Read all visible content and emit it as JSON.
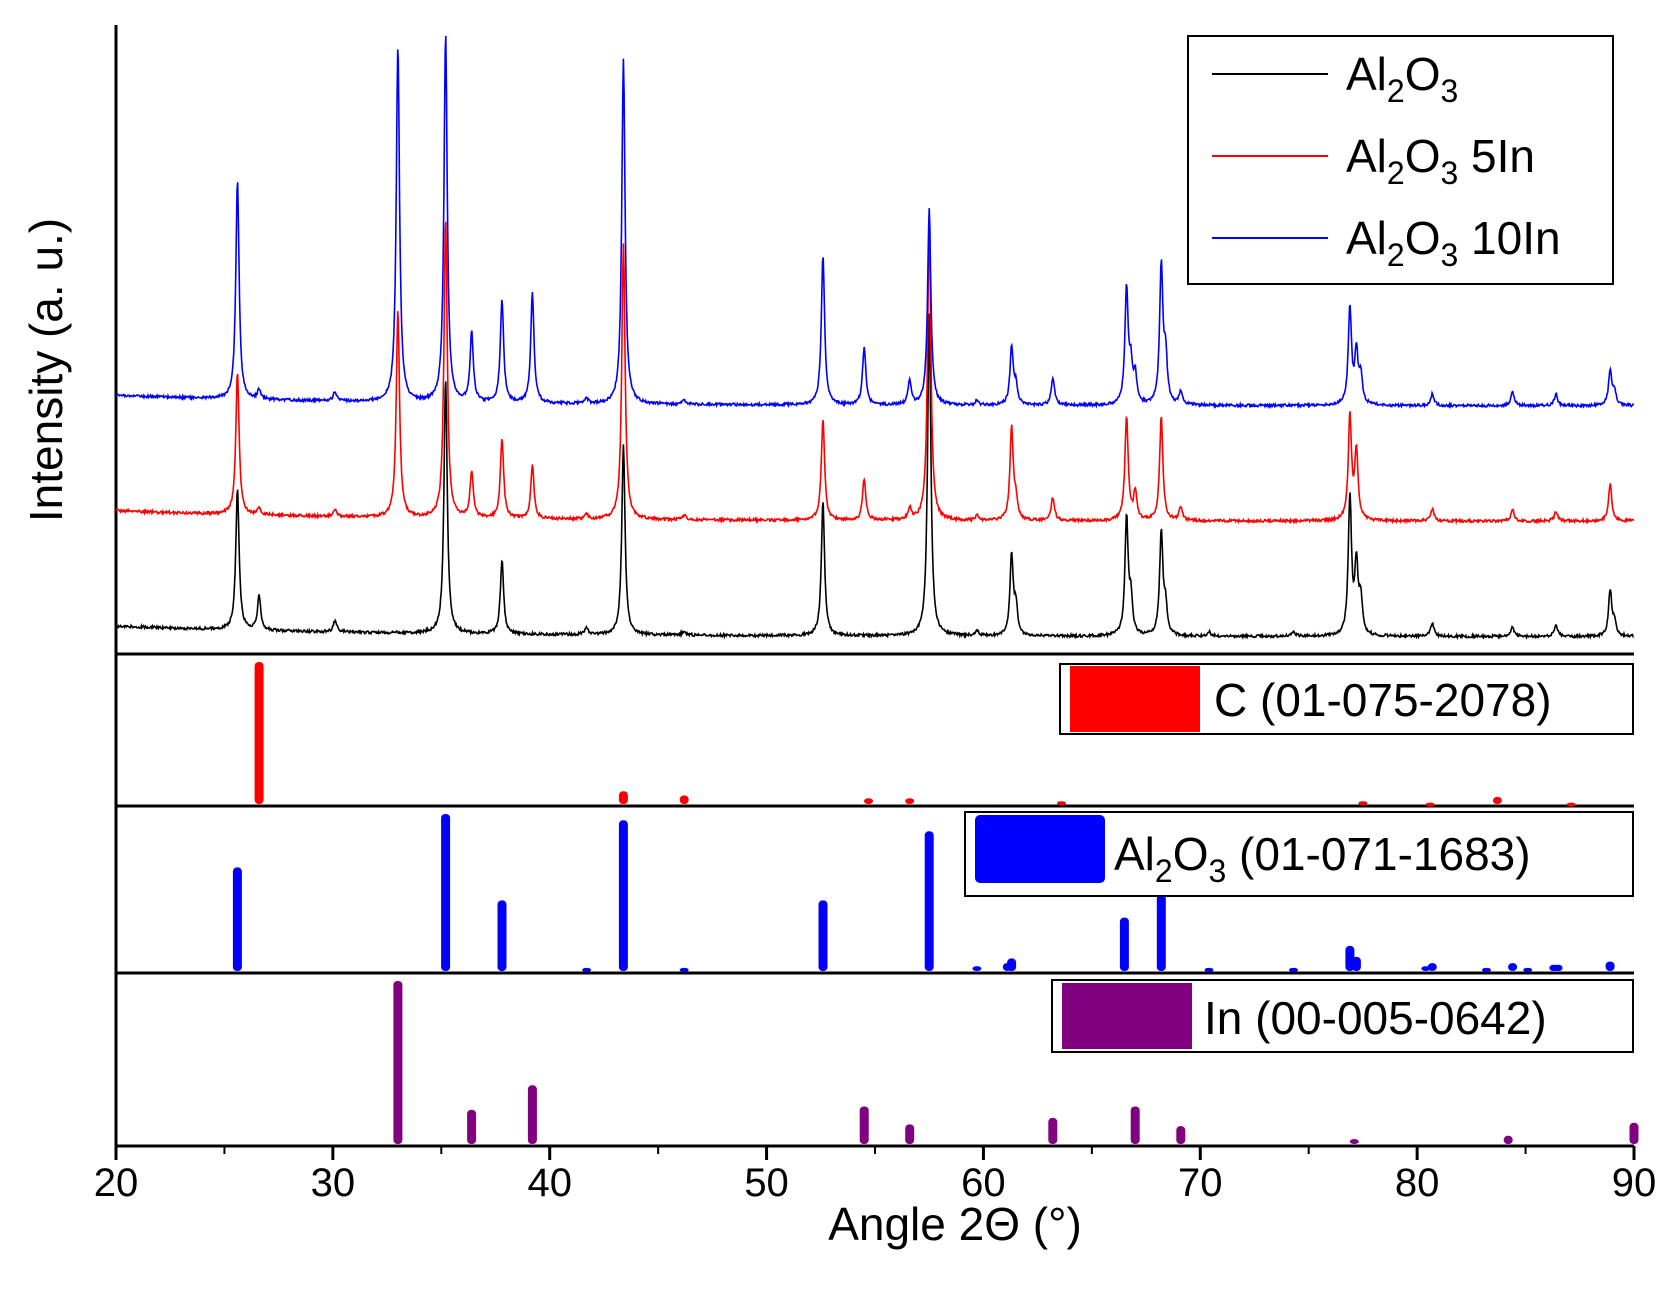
{
  "chart_data": {
    "type": "line",
    "title": "",
    "xlabel": "Angle 2Θ (°)",
    "ylabel": "Intensity (a. u.)",
    "xlim": [
      20,
      90
    ],
    "xticks": [
      20,
      30,
      40,
      50,
      60,
      70,
      80,
      90
    ],
    "legend_position": "top-right",
    "series": [
      {
        "name": "Al2O3",
        "label_main": "Al",
        "label_sub1": "2",
        "label_o": "O",
        "label_sub2": "3",
        "label_suffix": "",
        "color": "#000000",
        "baseline": 0.05,
        "peaks": [
          [
            25.6,
            0.62
          ],
          [
            26.6,
            0.15
          ],
          [
            30.1,
            0.05
          ],
          [
            35.2,
            1.1
          ],
          [
            37.8,
            0.32
          ],
          [
            41.7,
            0.03
          ],
          [
            43.4,
            0.82
          ],
          [
            46.2,
            0.02
          ],
          [
            52.6,
            0.58
          ],
          [
            57.5,
            1.4
          ],
          [
            59.7,
            0.02
          ],
          [
            61.3,
            0.35
          ],
          [
            61.5,
            0.12
          ],
          [
            66.6,
            0.51
          ],
          [
            66.8,
            0.15
          ],
          [
            68.2,
            0.45
          ],
          [
            68.4,
            0.12
          ],
          [
            70.4,
            0.02
          ],
          [
            74.3,
            0.02
          ],
          [
            76.9,
            0.6
          ],
          [
            77.2,
            0.3
          ],
          [
            77.4,
            0.15
          ],
          [
            80.7,
            0.06
          ],
          [
            84.4,
            0.04
          ],
          [
            86.4,
            0.05
          ],
          [
            88.9,
            0.2
          ],
          [
            89.1,
            0.06
          ]
        ]
      },
      {
        "name": "Al2O3 5In",
        "label_main": "Al",
        "label_sub1": "2",
        "label_o": "O",
        "label_sub2": "3",
        "label_suffix": " 5In",
        "color": "#ff0000",
        "baseline": 0.55,
        "peaks": [
          [
            25.6,
            0.62
          ],
          [
            26.6,
            0.03
          ],
          [
            30.1,
            0.03
          ],
          [
            33.0,
            0.9
          ],
          [
            35.2,
            1.3
          ],
          [
            36.4,
            0.2
          ],
          [
            37.8,
            0.35
          ],
          [
            39.2,
            0.23
          ],
          [
            41.7,
            0.02
          ],
          [
            43.4,
            1.2
          ],
          [
            46.2,
            0.02
          ],
          [
            52.6,
            0.44
          ],
          [
            54.5,
            0.18
          ],
          [
            56.6,
            0.05
          ],
          [
            57.5,
            1.3
          ],
          [
            59.7,
            0.02
          ],
          [
            61.3,
            0.4
          ],
          [
            61.5,
            0.08
          ],
          [
            63.2,
            0.1
          ],
          [
            66.6,
            0.45
          ],
          [
            67.0,
            0.12
          ],
          [
            68.2,
            0.45
          ],
          [
            69.1,
            0.06
          ],
          [
            76.9,
            0.45
          ],
          [
            77.2,
            0.3
          ],
          [
            80.7,
            0.05
          ],
          [
            84.4,
            0.05
          ],
          [
            86.4,
            0.04
          ],
          [
            88.9,
            0.16
          ]
        ]
      },
      {
        "name": "Al2O3 10In",
        "label_main": "Al",
        "label_sub1": "2",
        "label_o": "O",
        "label_sub2": "3",
        "label_suffix": " 10In",
        "color": "#0000ff",
        "baseline": 1.05,
        "peaks": [
          [
            25.6,
            0.95
          ],
          [
            26.6,
            0.04
          ],
          [
            30.1,
            0.04
          ],
          [
            33.0,
            1.55
          ],
          [
            35.2,
            1.6
          ],
          [
            36.4,
            0.3
          ],
          [
            37.8,
            0.45
          ],
          [
            39.2,
            0.48
          ],
          [
            41.7,
            0.02
          ],
          [
            43.4,
            1.5
          ],
          [
            46.2,
            0.02
          ],
          [
            52.6,
            0.65
          ],
          [
            54.5,
            0.25
          ],
          [
            56.6,
            0.1
          ],
          [
            57.5,
            0.85
          ],
          [
            59.7,
            0.02
          ],
          [
            61.3,
            0.25
          ],
          [
            61.5,
            0.08
          ],
          [
            63.2,
            0.12
          ],
          [
            66.6,
            0.5
          ],
          [
            66.8,
            0.15
          ],
          [
            67.0,
            0.12
          ],
          [
            68.2,
            0.6
          ],
          [
            68.4,
            0.2
          ],
          [
            69.1,
            0.06
          ],
          [
            76.9,
            0.42
          ],
          [
            77.2,
            0.22
          ],
          [
            77.4,
            0.12
          ],
          [
            80.7,
            0.05
          ],
          [
            84.4,
            0.06
          ],
          [
            86.4,
            0.05
          ],
          [
            88.9,
            0.15
          ],
          [
            89.1,
            0.06
          ]
        ]
      }
    ],
    "reference_panels": [
      {
        "name": "C (01-075-2078)",
        "label_main": "C (01-075-2078)",
        "label_parts": null,
        "color": "#ff0000",
        "peaks": [
          [
            26.6,
            100
          ],
          [
            43.4,
            9
          ],
          [
            46.2,
            6
          ],
          [
            54.7,
            4
          ],
          [
            56.6,
            4
          ],
          [
            63.6,
            2
          ],
          [
            77.5,
            2
          ],
          [
            80.6,
            1
          ],
          [
            83.7,
            5
          ],
          [
            87.1,
            1
          ]
        ]
      },
      {
        "name": "Al2O3 (01-071-1683)",
        "label_main": "Al",
        "label_parts": {
          "sub1": "2",
          "o": "O",
          "sub2": "3",
          "suffix": " (01-071-1683)"
        },
        "color": "#0000ff",
        "peaks": [
          [
            25.6,
            66
          ],
          [
            35.2,
            100
          ],
          [
            37.8,
            45
          ],
          [
            41.7,
            2
          ],
          [
            43.4,
            96
          ],
          [
            46.2,
            2
          ],
          [
            52.6,
            45
          ],
          [
            57.5,
            89
          ],
          [
            59.7,
            3
          ],
          [
            61.1,
            5
          ],
          [
            61.3,
            8
          ],
          [
            66.5,
            34
          ],
          [
            68.2,
            49
          ],
          [
            70.4,
            2
          ],
          [
            74.3,
            2
          ],
          [
            76.9,
            16
          ],
          [
            77.2,
            9
          ],
          [
            80.4,
            3
          ],
          [
            80.7,
            5
          ],
          [
            83.2,
            2
          ],
          [
            84.4,
            5
          ],
          [
            85.1,
            2
          ],
          [
            86.3,
            4
          ],
          [
            86.5,
            4
          ],
          [
            88.9,
            6
          ]
        ]
      },
      {
        "name": "In (00-005-0642)",
        "label_main": "In (00-005-0642)",
        "label_parts": null,
        "color": "#800080",
        "peaks": [
          [
            33.0,
            100
          ],
          [
            36.4,
            21
          ],
          [
            39.2,
            36
          ],
          [
            54.5,
            23
          ],
          [
            56.6,
            12
          ],
          [
            63.2,
            16
          ],
          [
            67.0,
            23
          ],
          [
            69.1,
            11
          ],
          [
            77.1,
            3
          ],
          [
            84.2,
            5
          ],
          [
            90.0,
            13
          ]
        ]
      }
    ]
  }
}
